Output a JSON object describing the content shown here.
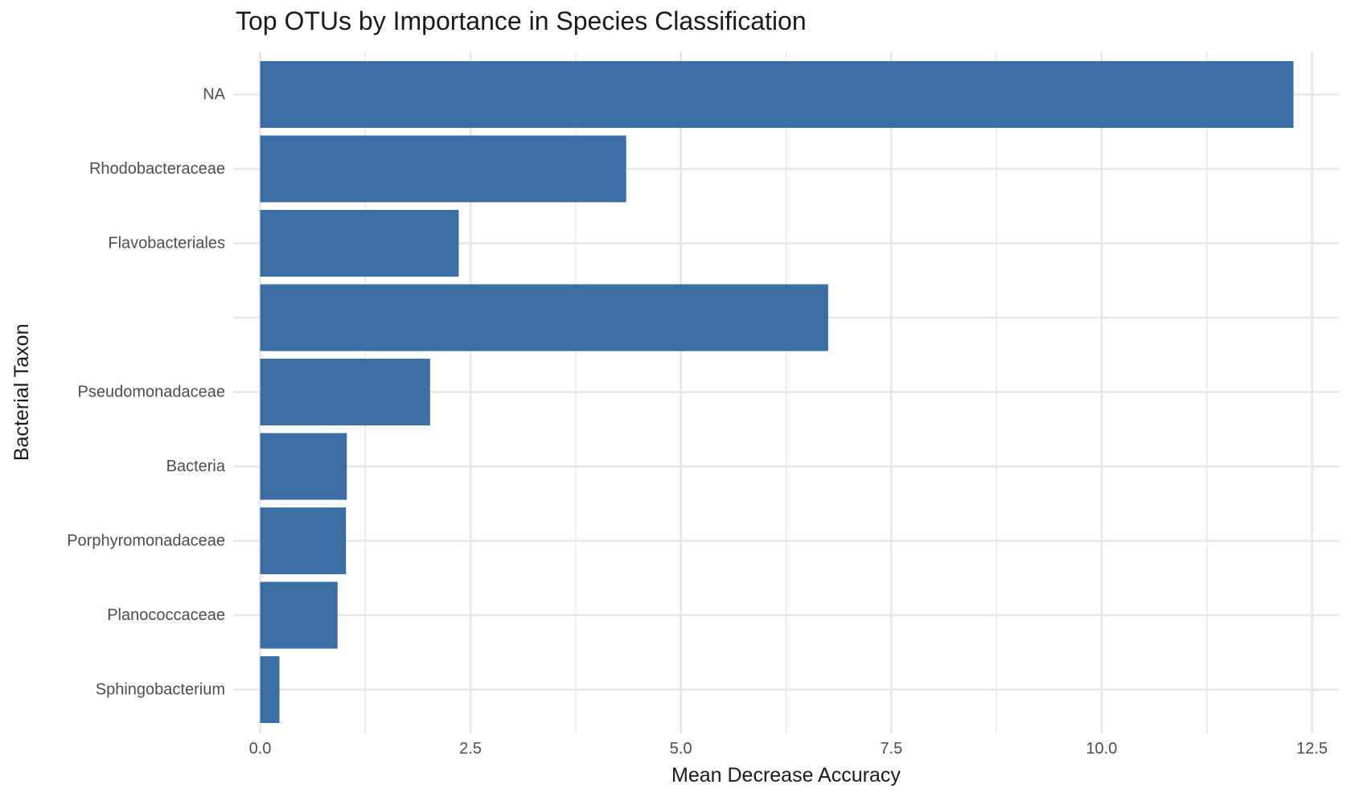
{
  "chart_data": {
    "type": "bar",
    "orientation": "horizontal",
    "title": "Top OTUs by Importance in Species Classification",
    "xlabel": "Mean Decrease Accuracy",
    "ylabel": "Bacterial Taxon",
    "categories": [
      "NA",
      "Rhodobacteraceae",
      "Flavobacteriales",
      "",
      "Pseudomonadaceae",
      "Bacteria",
      "Porphyromonadaceae",
      "Planococcaceae",
      "Sphingobacterium"
    ],
    "values": [
      12.28,
      4.35,
      2.36,
      6.75,
      2.02,
      1.03,
      1.02,
      0.92,
      0.23
    ],
    "xlim": [
      -0.32,
      12.82
    ],
    "xticks": [
      "0.0",
      "2.5",
      "5.0",
      "7.5",
      "10.0",
      "12.5"
    ],
    "xtick_values": [
      0,
      2.5,
      5,
      7.5,
      10,
      12.5
    ],
    "grid": true,
    "bar_color": "#3A6EA5",
    "grid_color": "#E6E6E6"
  }
}
